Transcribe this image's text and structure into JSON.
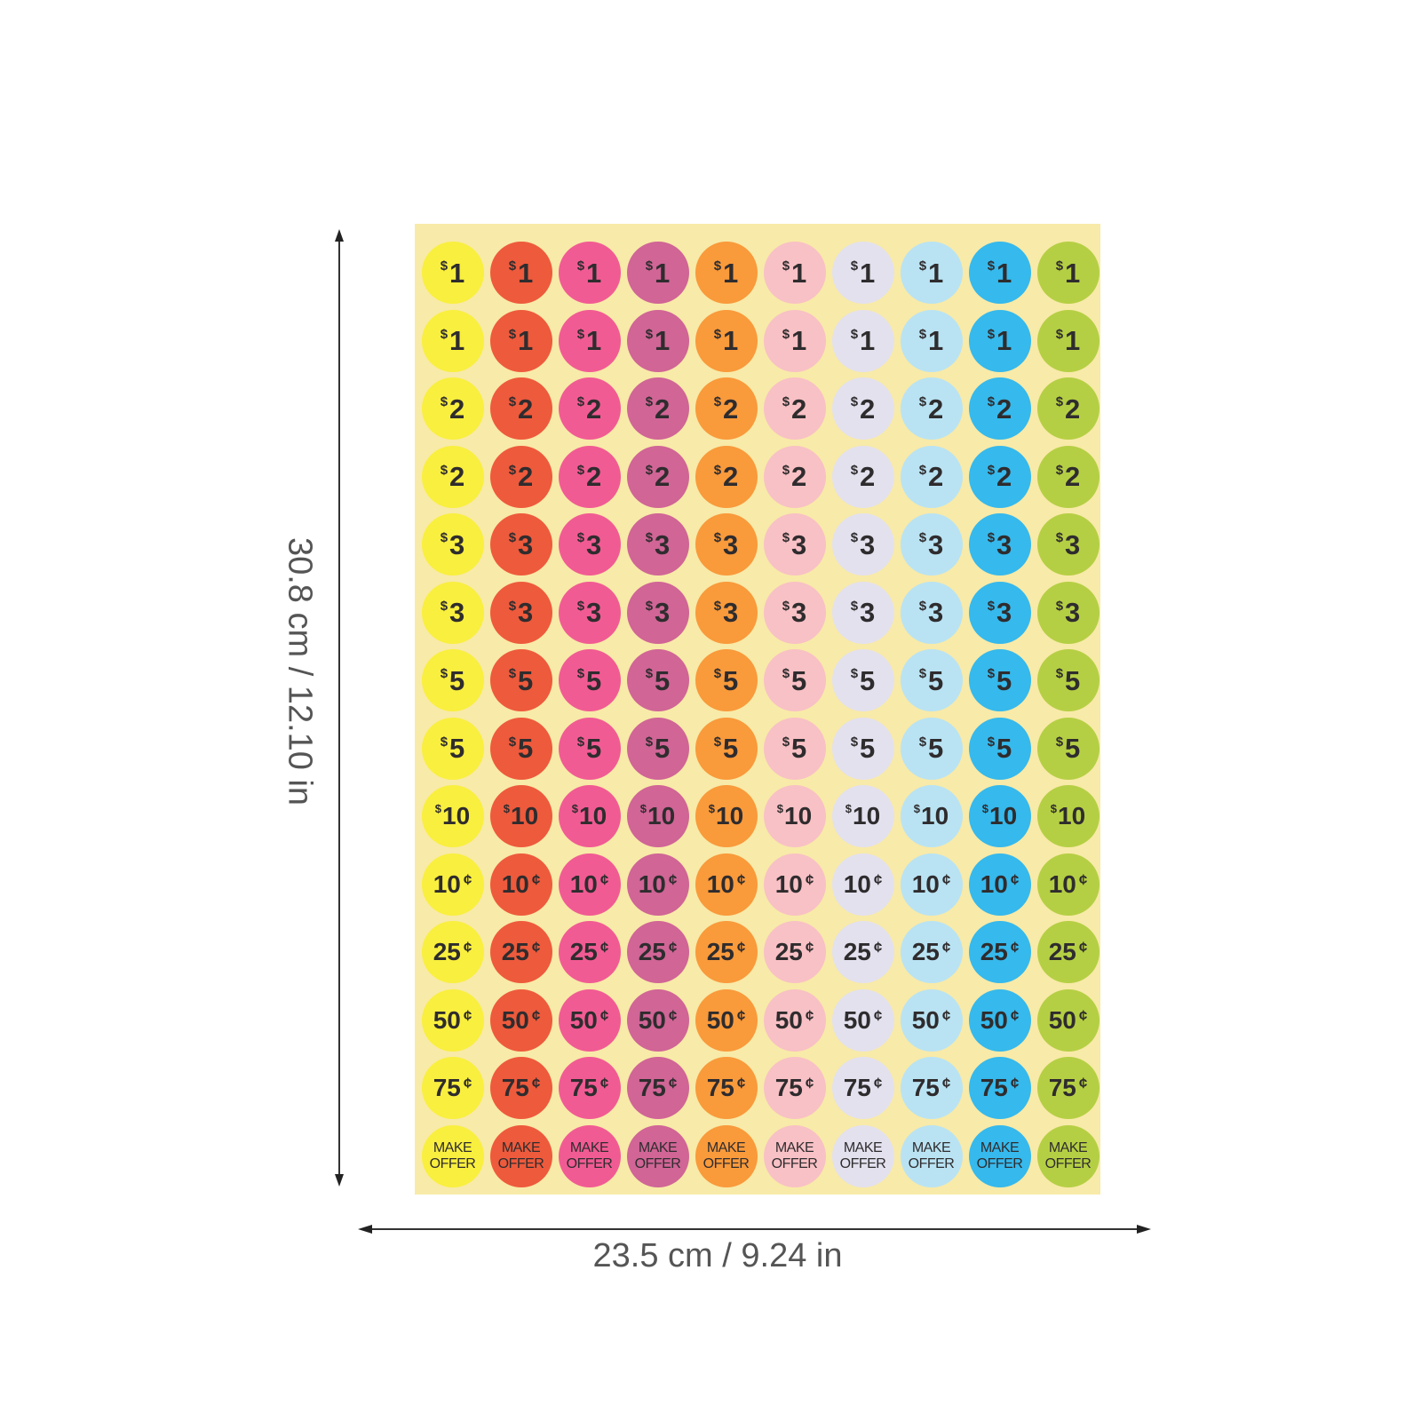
{
  "dimensions": {
    "height_label": "30.8 cm / 12.10 in",
    "width_label": "23.5 cm / 9.24 in"
  },
  "sheet": {
    "background_color": "#f8eaa8",
    "column_colors": [
      "#f9ef3e",
      "#ee5a3c",
      "#f15b93",
      "#d06596",
      "#f99a3b",
      "#f8c1c5",
      "#e3e1ee",
      "#b9e3f3",
      "#36b9ec",
      "#b5cf44"
    ],
    "rows": [
      {
        "type": "dollar",
        "symbol": "$",
        "value": "1"
      },
      {
        "type": "dollar",
        "symbol": "$",
        "value": "1"
      },
      {
        "type": "dollar",
        "symbol": "$",
        "value": "2"
      },
      {
        "type": "dollar",
        "symbol": "$",
        "value": "2"
      },
      {
        "type": "dollar",
        "symbol": "$",
        "value": "3"
      },
      {
        "type": "dollar",
        "symbol": "$",
        "value": "3"
      },
      {
        "type": "dollar",
        "symbol": "$",
        "value": "5"
      },
      {
        "type": "dollar",
        "symbol": "$",
        "value": "5"
      },
      {
        "type": "dollar",
        "symbol": "$",
        "value": "10"
      },
      {
        "type": "cent",
        "symbol": "¢",
        "value": "10"
      },
      {
        "type": "cent",
        "symbol": "¢",
        "value": "25"
      },
      {
        "type": "cent",
        "symbol": "¢",
        "value": "50"
      },
      {
        "type": "cent",
        "symbol": "¢",
        "value": "75"
      },
      {
        "type": "offer",
        "line1": "MAKE",
        "line2": "OFFER"
      }
    ]
  }
}
